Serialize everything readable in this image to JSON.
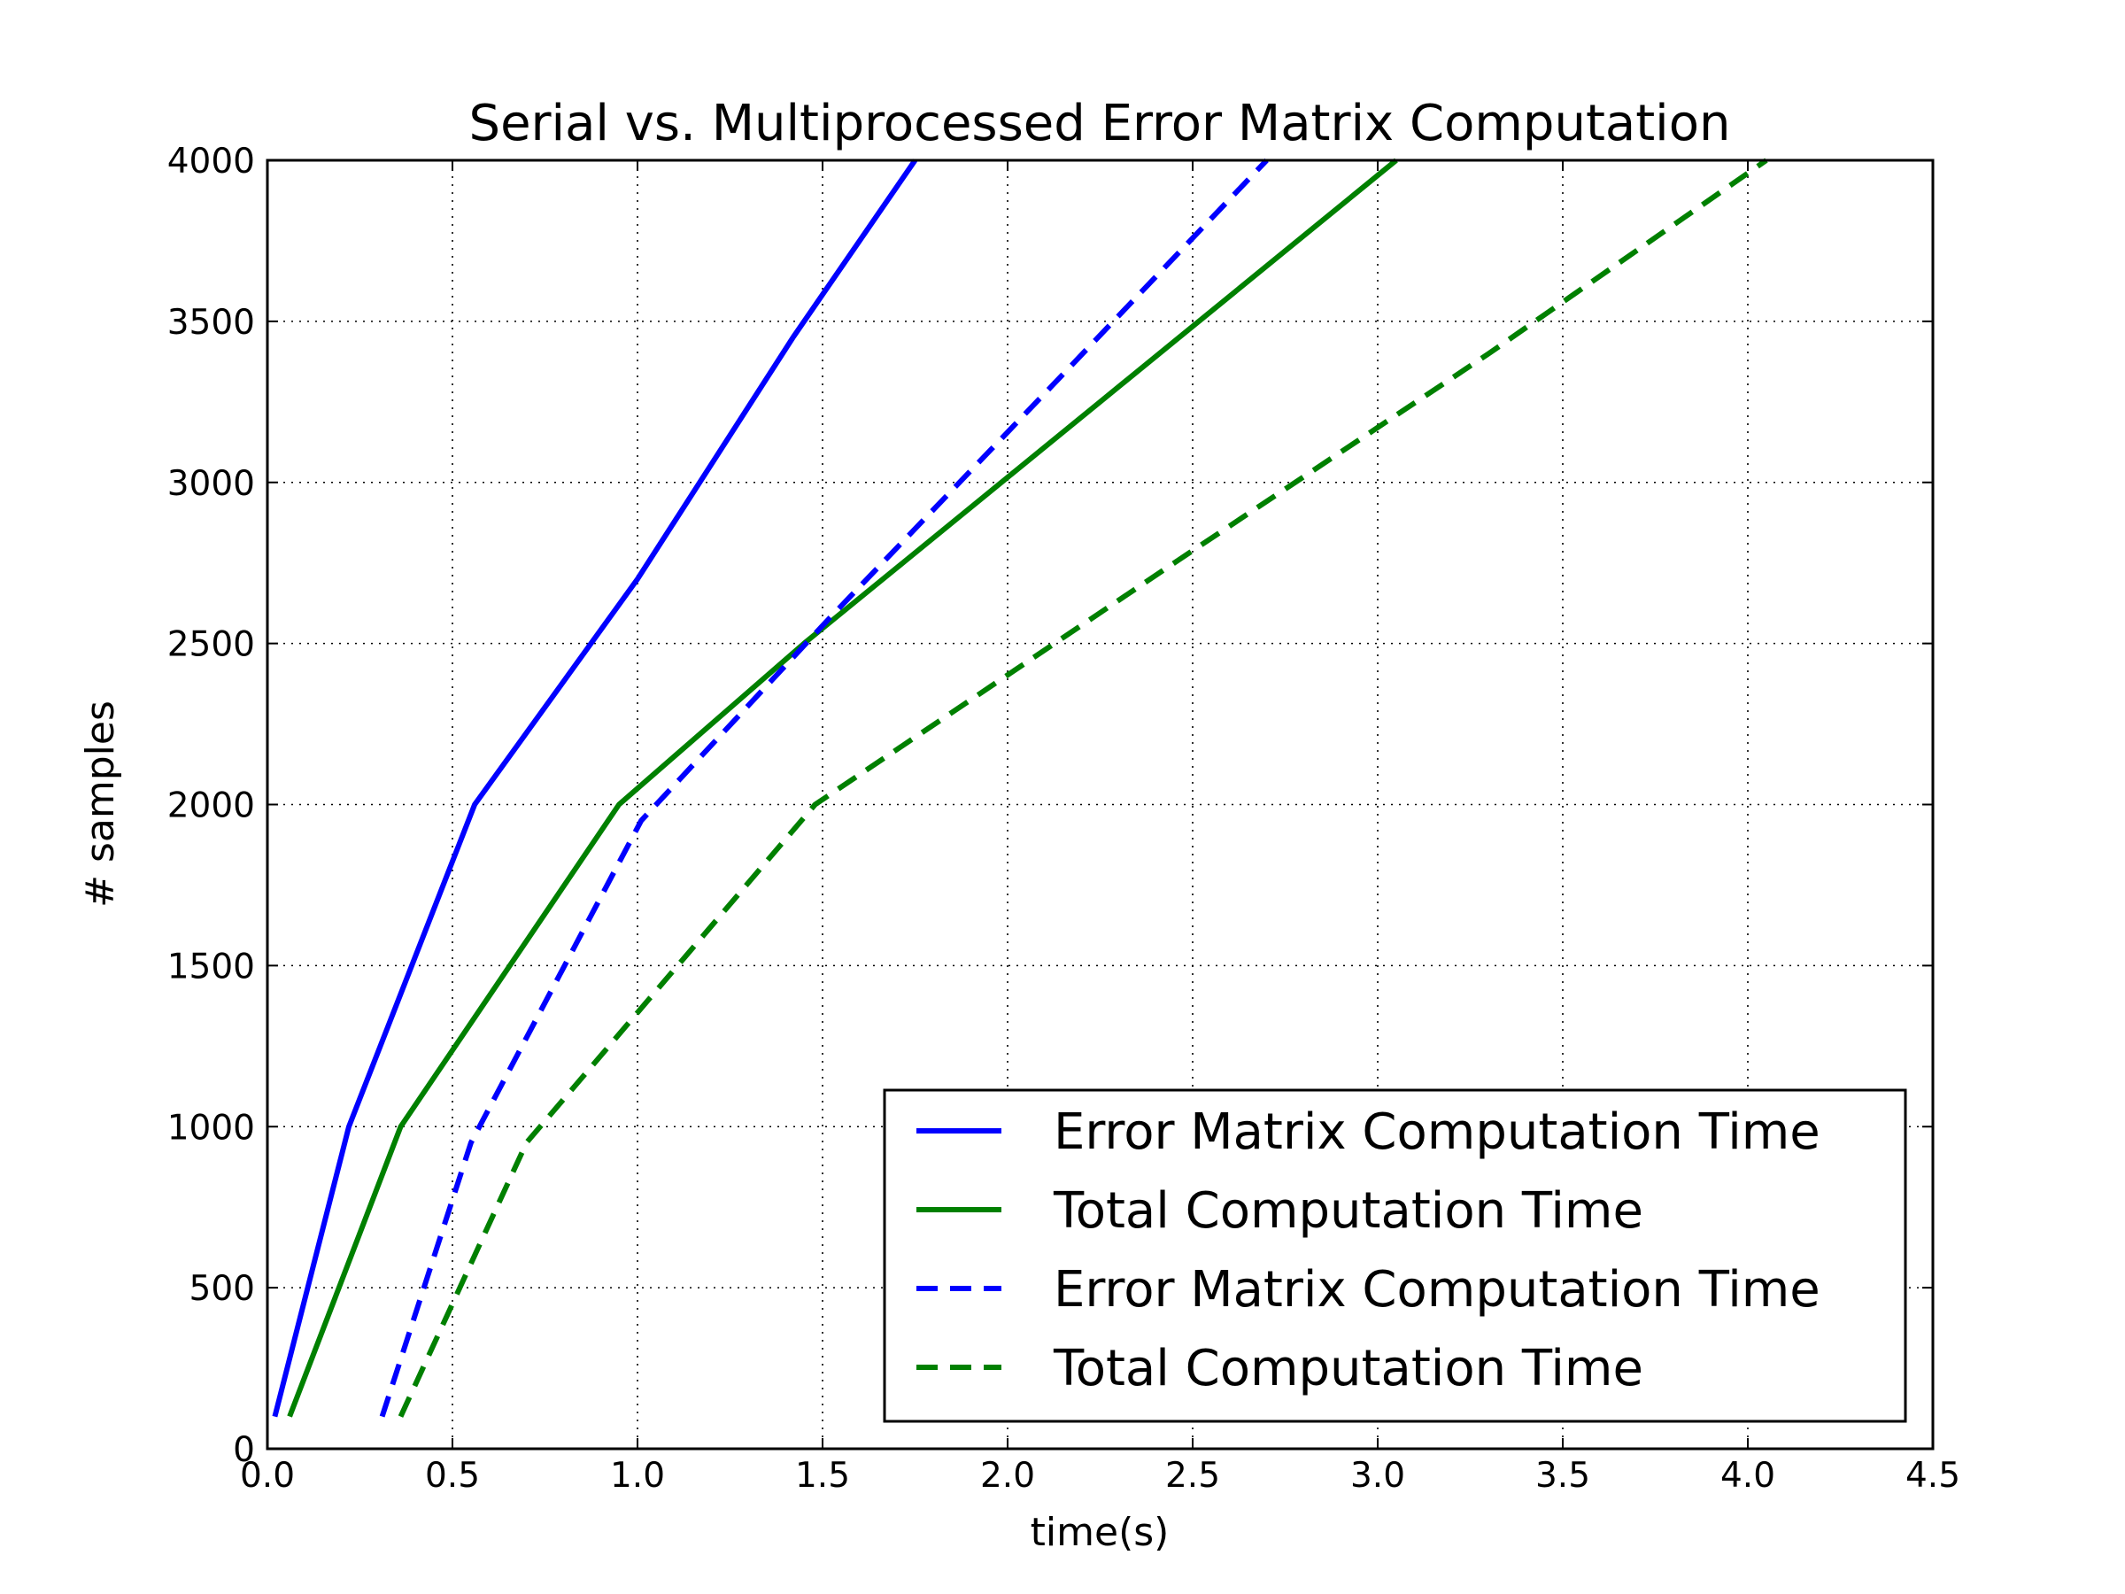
{
  "chart_data": {
    "type": "line",
    "title": "Serial vs. Multiprocessed Error Matrix Computation",
    "xlabel": "time(s)",
    "ylabel": "# samples",
    "xlim": [
      0.0,
      4.5
    ],
    "ylim": [
      0,
      4000
    ],
    "xticks": [
      "0.0",
      "0.5",
      "1.0",
      "1.5",
      "2.0",
      "2.5",
      "3.0",
      "3.5",
      "4.0",
      "4.5"
    ],
    "xtick_values": [
      0.0,
      0.5,
      1.0,
      1.5,
      2.0,
      2.5,
      3.0,
      3.5,
      4.0,
      4.5
    ],
    "yticks": [
      "0",
      "500",
      "1000",
      "1500",
      "2000",
      "2500",
      "3000",
      "3500",
      "4000"
    ],
    "ytick_values": [
      0,
      500,
      1000,
      1500,
      2000,
      2500,
      3000,
      3500,
      4000
    ],
    "grid": true,
    "legend_position": "lower-right",
    "series": [
      {
        "name": "Error Matrix Computation Time",
        "color": "#0000ff",
        "style": "solid",
        "x": [
          0.02,
          0.22,
          0.56,
          1.0,
          1.42,
          1.75
        ],
        "y": [
          100,
          1000,
          2000,
          2700,
          3450,
          4000
        ]
      },
      {
        "name": "Total Computation Time",
        "color": "#008000",
        "style": "solid",
        "x": [
          0.06,
          0.36,
          0.95,
          1.45,
          2.25,
          3.05
        ],
        "y": [
          100,
          1000,
          2000,
          2500,
          3250,
          4000
        ]
      },
      {
        "name": "Error Matrix Computation Time",
        "color": "#0000ff",
        "style": "dashed",
        "x": [
          0.31,
          0.55,
          1.01,
          1.52,
          2.12,
          2.7
        ],
        "y": [
          100,
          950,
          1950,
          2580,
          3300,
          4000
        ]
      },
      {
        "name": "Total Computation Time",
        "color": "#008000",
        "style": "dashed",
        "x": [
          0.36,
          0.7,
          1.48,
          2.45,
          3.3,
          4.05
        ],
        "y": [
          100,
          950,
          2000,
          2750,
          3400,
          4000
        ]
      }
    ]
  }
}
